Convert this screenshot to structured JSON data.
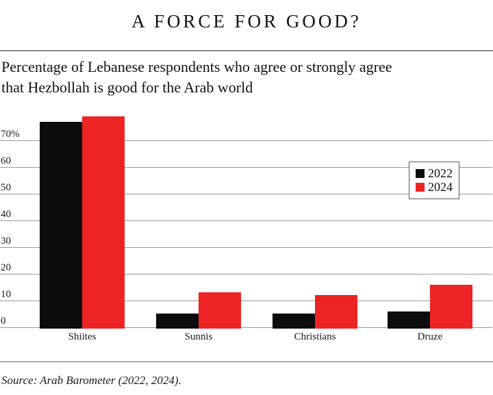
{
  "header": {
    "title": "A FORCE FOR GOOD?"
  },
  "subtitle": {
    "line1": "Percentage of Lebanese respondents who agree or strongly agree",
    "line2": "that Hezbollah is good for the Arab world"
  },
  "source": {
    "text": "Source: Arab Barometer (2022, 2024)."
  },
  "colors": {
    "bar_2022": "#0d0d0f",
    "bar_2024": "#ed2424",
    "gridline": "#9b9b9b"
  },
  "chart_data": {
    "type": "bar",
    "title": "A FORCE FOR GOOD?",
    "subtitle": "Percentage of Lebanese respondents who agree or strongly agree that Hezbollah is good for the Arab world",
    "categories": [
      "Shiites",
      "Sunnis",
      "Christians",
      "Druze"
    ],
    "series": [
      {
        "name": "2022",
        "color": "#0d0d0f",
        "values": [
          77,
          5,
          5,
          6
        ]
      },
      {
        "name": "2024",
        "color": "#ed2424",
        "values": [
          79,
          13,
          12,
          16
        ]
      }
    ],
    "xlabel": "",
    "ylabel": "",
    "y_axis": {
      "tick_labels": [
        "70%",
        "60",
        "50",
        "40",
        "30",
        "20",
        "10",
        "0"
      ],
      "tick_values": [
        70,
        60,
        50,
        40,
        30,
        20,
        10,
        0
      ],
      "ylim": [
        0,
        81
      ]
    },
    "grid": true,
    "legend_position": "middle-right",
    "legend_entries": [
      {
        "label": "2022",
        "color": "#0d0d0f"
      },
      {
        "label": "2024",
        "color": "#ed2424"
      }
    ],
    "source_note": "Source: Arab Barometer (2022, 2024)."
  }
}
